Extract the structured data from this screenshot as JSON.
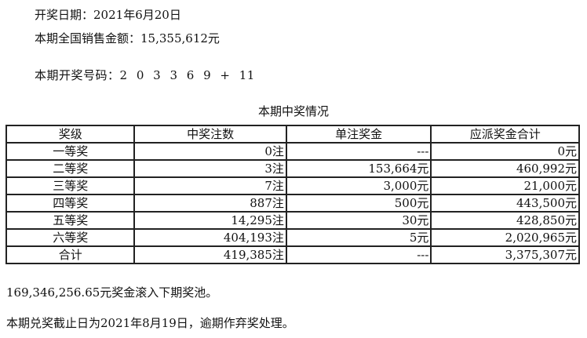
{
  "draw_date_label": "开奖日期：",
  "draw_date": "2021年6月20日",
  "sales_label": "本期全国销售金额：",
  "sales": "15,355,612元",
  "numbers_label": "本期开奖号码：",
  "numbers": "2 0 3 3 6 9 + 11",
  "table_title": "本期中奖情况",
  "headers": [
    "奖级",
    "中奖注数",
    "单注奖金",
    "应派奖金合计"
  ],
  "rows": [
    [
      "一等奖",
      "0注",
      "---",
      "0元"
    ],
    [
      "二等奖",
      "3注",
      "153,664元",
      "460,992元"
    ],
    [
      "三等奖",
      "7注",
      "3,000元",
      "21,000元"
    ],
    [
      "四等奖",
      "887注",
      "500元",
      "443,500元"
    ],
    [
      "五等奖",
      "14,295注",
      "30元",
      "428,850元"
    ],
    [
      "六等奖",
      "404,193注",
      "5元",
      "2,020,965元"
    ],
    [
      "合计",
      "419,385注",
      "---",
      "3,375,307元"
    ]
  ],
  "rollover": "169,346,256.65元奖金滚入下期奖池。",
  "deadline": "本期兑奖截止日为2021年8月19日，逾期作弃奖处理。"
}
